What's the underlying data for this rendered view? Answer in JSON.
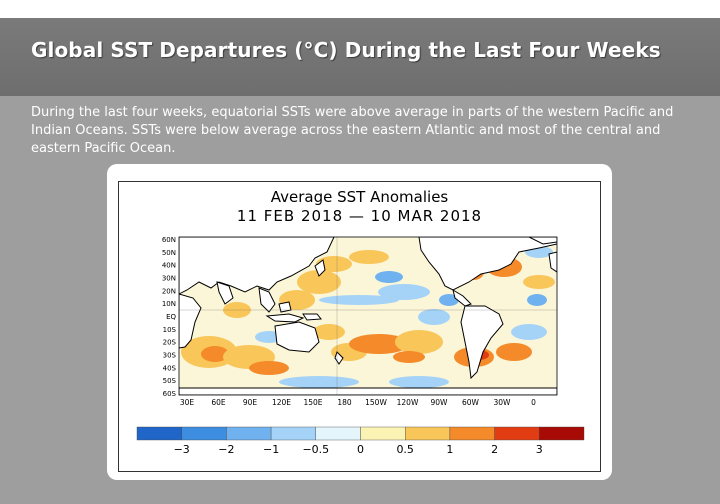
{
  "slide": {
    "title": "Global SST Departures (°C) During the Last Four Weeks",
    "body": "During the last four weeks, equatorial SSTs were above average in parts of the western Pacific and Indian Oceans. SSTs were below average across the eastern Atlantic and most of the central and eastern Pacific Ocean."
  },
  "figure": {
    "title": "Average SST Anomalies",
    "period": "11 FEB 2018 — 10 MAR 2018",
    "lat_labels": [
      "60N",
      "50N",
      "40N",
      "30N",
      "20N",
      "10N",
      "EQ",
      "10S",
      "20S",
      "30S",
      "40S",
      "50S",
      "60S"
    ],
    "lon_labels": [
      "30E",
      "60E",
      "90E",
      "120E",
      "150E",
      "180",
      "150W",
      "120W",
      "90W",
      "60W",
      "30W",
      "0"
    ],
    "colorbar": {
      "ticks": [
        "−3",
        "−2",
        "−1",
        "−0.5",
        "0",
        "0.5",
        "1",
        "2",
        "3"
      ],
      "colors": [
        "#1f66c8",
        "#3d8ee0",
        "#70b2ef",
        "#a5d3f8",
        "#e4f6fb",
        "#fbf3b4",
        "#f9c65a",
        "#f48a2a",
        "#e23d12",
        "#a80a06"
      ]
    },
    "palette": {
      "land": "#ffffff",
      "neutral_ocean": "#fbf6d8"
    }
  }
}
